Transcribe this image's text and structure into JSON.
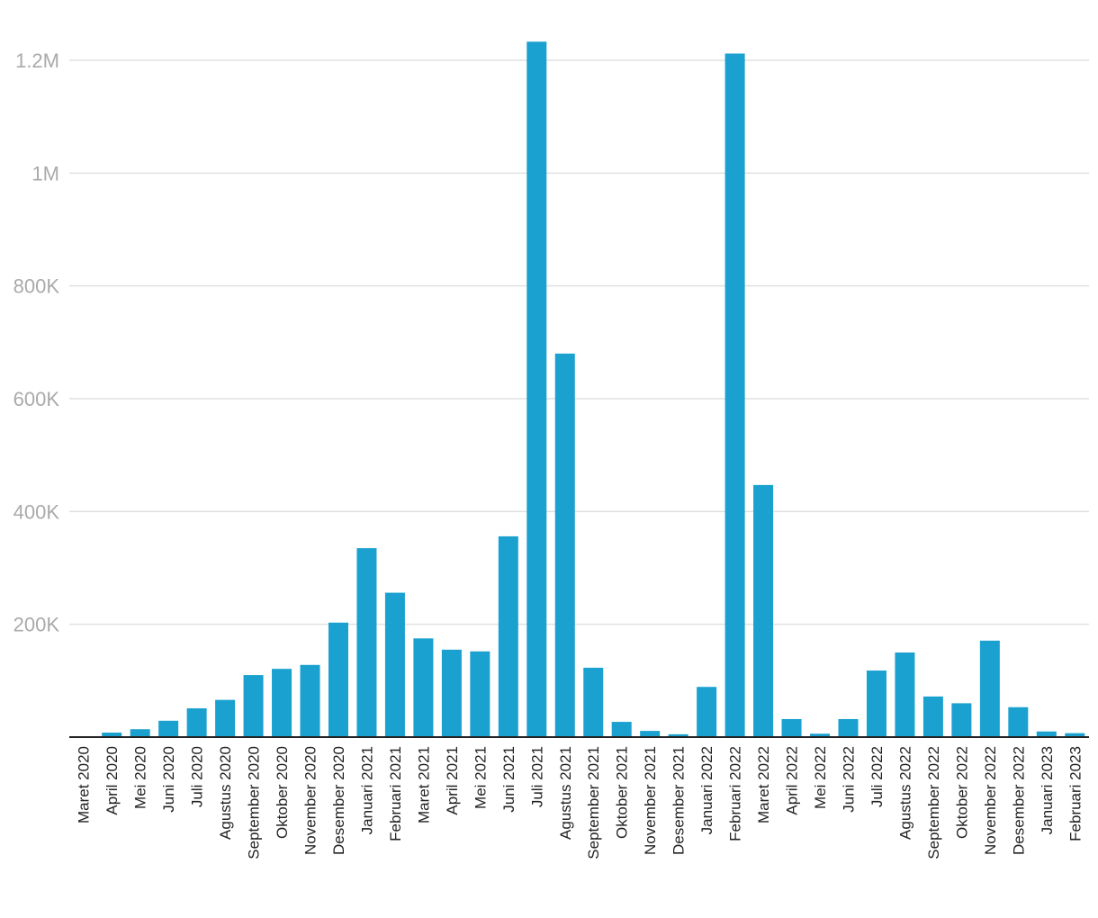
{
  "chart_data": {
    "type": "bar",
    "title": "",
    "xlabel": "",
    "ylabel": "",
    "ylim": [
      0,
      1230000
    ],
    "grid": true,
    "legend": "none",
    "bar_color": "#1aa1d0",
    "yticks": [
      {
        "value": 200000,
        "label": "200K"
      },
      {
        "value": 400000,
        "label": "400K"
      },
      {
        "value": 600000,
        "label": "600K"
      },
      {
        "value": 800000,
        "label": "800K"
      },
      {
        "value": 1000000,
        "label": "1M"
      },
      {
        "value": 1200000,
        "label": "1.2M"
      }
    ],
    "categories": [
      "Maret 2020",
      "April 2020",
      "Mei 2020",
      "Juni 2020",
      "Juli 2020",
      "Agustus 2020",
      "September 2020",
      "Oktober 2020",
      "November 2020",
      "Desember 2020",
      "Januari 2021",
      "Februari 2021",
      "Maret 2021",
      "April 2021",
      "Mei 2021",
      "Juni 2021",
      "Juli 2021",
      "Agustus 2021",
      "September 2021",
      "Oktober 2021",
      "November 2021",
      "Desember 2021",
      "Januari 2022",
      "Februari 2022",
      "Maret 2022",
      "April 2022",
      "Mei 2022",
      "Juni 2022",
      "Juli 2022",
      "Agustus 2022",
      "September 2022",
      "Oktober 2022",
      "November 2022",
      "Desember 2022",
      "Januari 2023",
      "Februari 2023"
    ],
    "values": [
      1000,
      8000,
      14000,
      29000,
      51000,
      66000,
      110000,
      121000,
      128000,
      203000,
      335000,
      256000,
      175000,
      155000,
      152000,
      356000,
      1233000,
      680000,
      123000,
      27000,
      11000,
      5000,
      89000,
      1212000,
      447000,
      32000,
      6000,
      32000,
      118000,
      150000,
      72000,
      60000,
      171000,
      53000,
      10000,
      7000
    ]
  }
}
